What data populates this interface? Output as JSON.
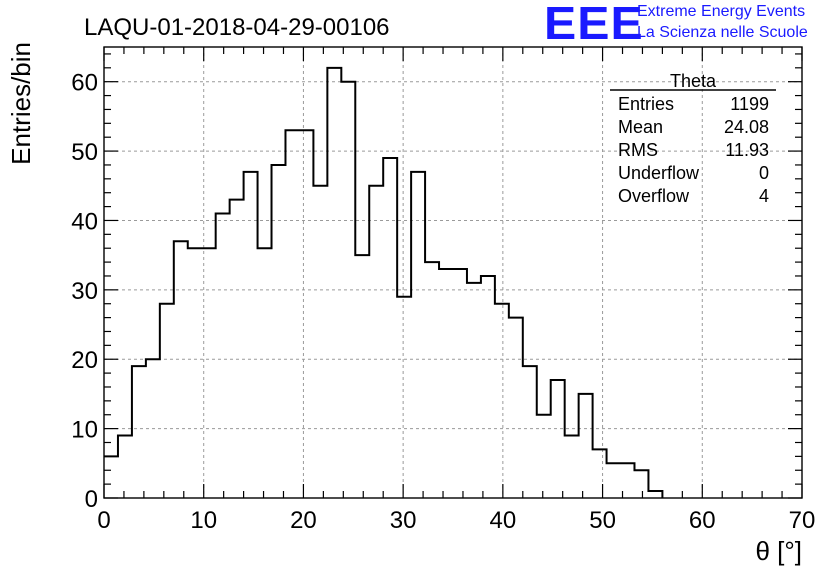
{
  "header": {
    "run_title": "LAQU-01-2018-04-29-00106",
    "logo_text": "EEE",
    "logo_line1": "Extreme Energy Events",
    "logo_line2": "La Scienza nelle Scuole",
    "logo_color": "#1a1aff"
  },
  "chart_data": {
    "type": "histogram",
    "title": "LAQU-01-2018-04-29-00106",
    "xlabel": "θ [°]",
    "ylabel": "Entries/bin",
    "xlim": [
      0,
      70
    ],
    "ylim": [
      0,
      65
    ],
    "xticks": [
      0,
      10,
      20,
      30,
      40,
      50,
      60,
      70
    ],
    "yticks": [
      0,
      10,
      20,
      30,
      40,
      50,
      60
    ],
    "grid": true,
    "bin_width": 1.4,
    "bin_edges_start": 0,
    "values": [
      6,
      9,
      19,
      20,
      28,
      37,
      36,
      36,
      41,
      43,
      47,
      36,
      48,
      53,
      53,
      45,
      62,
      60,
      35,
      45,
      49,
      29,
      47,
      34,
      33,
      33,
      31,
      32,
      28,
      26,
      19,
      12,
      17,
      9,
      15,
      7,
      5,
      5,
      4,
      1,
      0,
      0,
      0,
      0,
      0,
      0,
      0,
      0,
      0,
      0
    ],
    "stats_box": {
      "name": "Theta",
      "placement": "top-right",
      "rows": [
        {
          "label": "Entries",
          "value": "1199"
        },
        {
          "label": "Mean",
          "value": "24.08"
        },
        {
          "label": "RMS",
          "value": "11.93"
        },
        {
          "label": "Underflow",
          "value": "0"
        },
        {
          "label": "Overflow",
          "value": "4"
        }
      ]
    }
  }
}
